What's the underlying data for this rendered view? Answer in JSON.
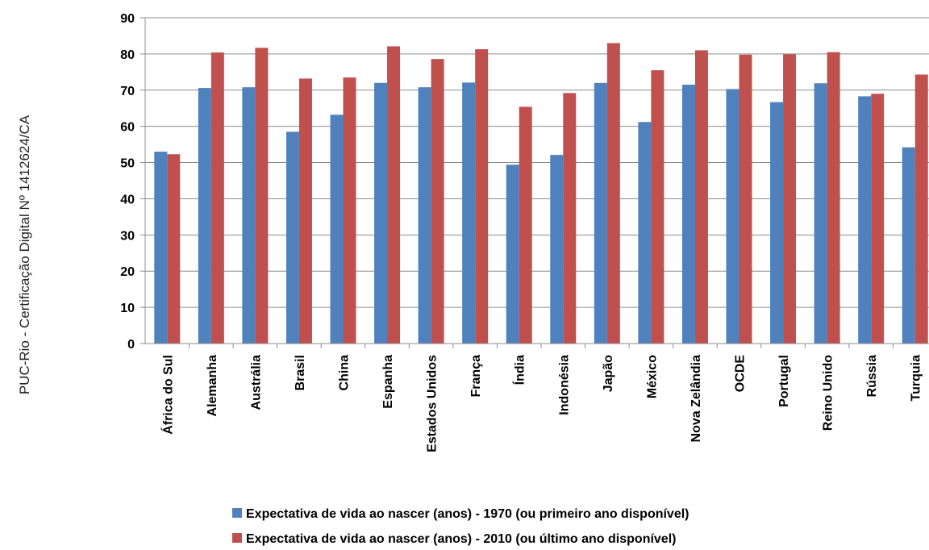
{
  "side_note": "PUC-Rio - Certificação Digital Nº 1412624/CA",
  "chart_data": {
    "type": "bar",
    "categories": [
      "África do Sul",
      "Alemanha",
      "Austrália",
      "Brasil",
      "China",
      "Espanha",
      "Estados Unidos",
      "França",
      "Índia",
      "Indonésia",
      "Japão",
      "México",
      "Nova Zelândia",
      "OCDE",
      "Portugal",
      "Reino Unido",
      "Rússia",
      "Turquia"
    ],
    "series": [
      {
        "name": "Expectativa de vida ao nascer (anos) - 1970 (ou primeiro ano disponível)",
        "color": "#4F81BD",
        "values": [
          53.0,
          70.6,
          70.8,
          58.5,
          63.2,
          72.0,
          70.8,
          72.1,
          49.4,
          52.1,
          72.0,
          61.2,
          71.5,
          70.3,
          66.7,
          71.9,
          68.3,
          54.2
        ]
      },
      {
        "name": "Expectativa de vida ao nascer (anos) - 2010 (ou último ano disponível)",
        "color": "#C0504D",
        "values": [
          52.3,
          80.4,
          81.7,
          73.2,
          73.5,
          82.1,
          78.6,
          81.3,
          65.4,
          69.2,
          83.0,
          75.5,
          81.0,
          79.8,
          79.9,
          80.5,
          69.0,
          74.3
        ]
      }
    ],
    "ylim": [
      0,
      90
    ],
    "yticks": [
      "0",
      "10",
      "20",
      "30",
      "40",
      "50",
      "60",
      "70",
      "80",
      "90"
    ],
    "grid": true,
    "legend_position": "bottom"
  }
}
